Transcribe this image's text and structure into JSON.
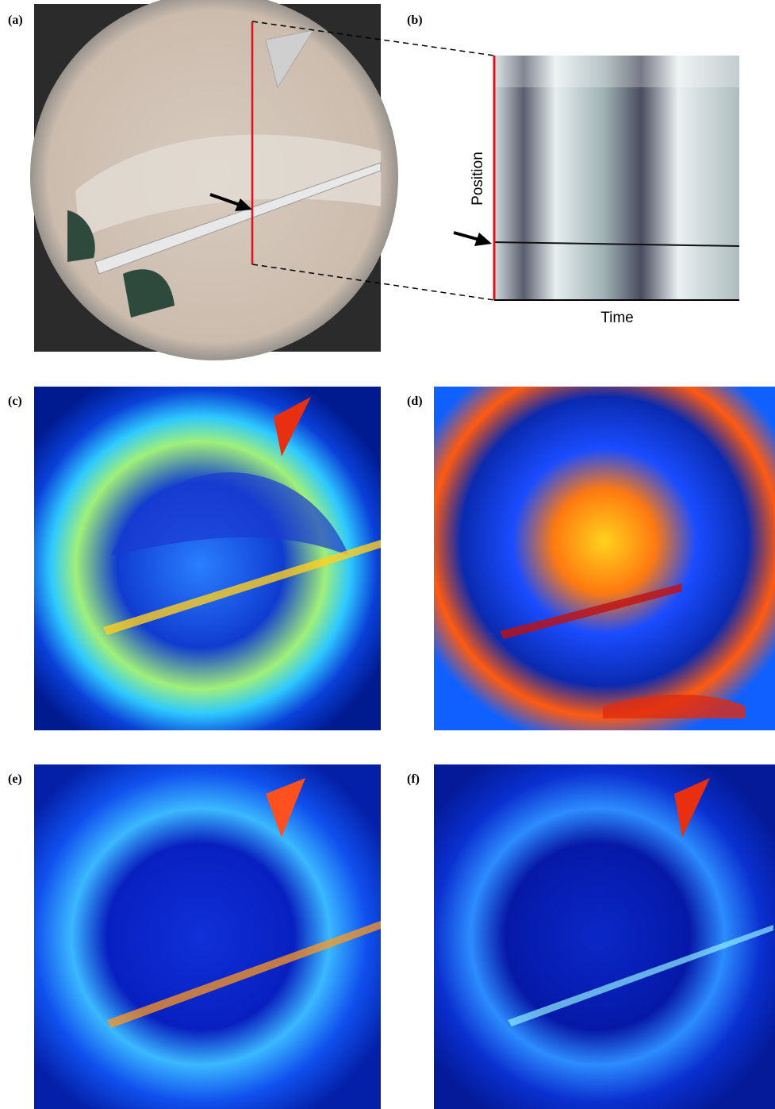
{
  "panels": [
    {
      "label": "(a)"
    },
    {
      "label": "(b)"
    },
    {
      "label": "(c)"
    },
    {
      "label": "(d)"
    },
    {
      "label": "(e)"
    },
    {
      "label": "(f)"
    }
  ],
  "kymograph": {
    "y_label": "Position",
    "x_label": "Time"
  }
}
